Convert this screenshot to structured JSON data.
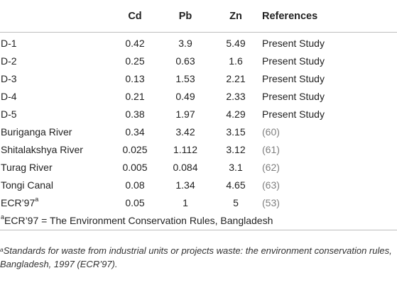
{
  "table": {
    "headers": {
      "site": "",
      "cd": "Cd",
      "pb": "Pb",
      "zn": "Zn",
      "references": "References"
    },
    "rows": [
      {
        "site": "D-1",
        "site_sup": "",
        "cd": "0.42",
        "pb": "3.9",
        "zn": "5.49",
        "ref_text": "Present Study",
        "ref_num": ""
      },
      {
        "site": "D-2",
        "site_sup": "",
        "cd": "0.25",
        "pb": "0.63",
        "zn": "1.6",
        "ref_text": "Present Study",
        "ref_num": ""
      },
      {
        "site": "D-3",
        "site_sup": "",
        "cd": "0.13",
        "pb": "1.53",
        "zn": "2.21",
        "ref_text": "Present Study",
        "ref_num": ""
      },
      {
        "site": "D-4",
        "site_sup": "",
        "cd": "0.21",
        "pb": "0.49",
        "zn": "2.33",
        "ref_text": "Present Study",
        "ref_num": ""
      },
      {
        "site": "D-5",
        "site_sup": "",
        "cd": "0.38",
        "pb": "1.97",
        "zn": "4.29",
        "ref_text": "Present Study",
        "ref_num": ""
      },
      {
        "site": "Buriganga River",
        "site_sup": "",
        "cd": "0.34",
        "pb": "3.42",
        "zn": "3.15",
        "ref_text": "",
        "ref_num": "60"
      },
      {
        "site": "Shitalakshya River",
        "site_sup": "",
        "cd": "0.025",
        "pb": "1.112",
        "zn": "3.12",
        "ref_text": "",
        "ref_num": "61"
      },
      {
        "site": "Turag River",
        "site_sup": "",
        "cd": "0.005",
        "pb": "0.084",
        "zn": "3.1",
        "ref_text": "",
        "ref_num": "62"
      },
      {
        "site": "Tongi Canal",
        "site_sup": "",
        "cd": "0.08",
        "pb": "1.34",
        "zn": "4.65",
        "ref_text": "",
        "ref_num": "63"
      },
      {
        "site": "ECR’97",
        "site_sup": "a",
        "cd": "0.05",
        "pb": "1",
        "zn": "5",
        "ref_text": "",
        "ref_num": "53"
      }
    ],
    "note_row": {
      "sup": "a",
      "text": "ECR’97 = The Environment Conservation Rules, Bangladesh"
    }
  },
  "footnote": {
    "sup": "a",
    "text": "Standards for waste from industrial units or projects waste: the environment conservation rules, Bangladesh, 1997 (ECR’97)."
  }
}
